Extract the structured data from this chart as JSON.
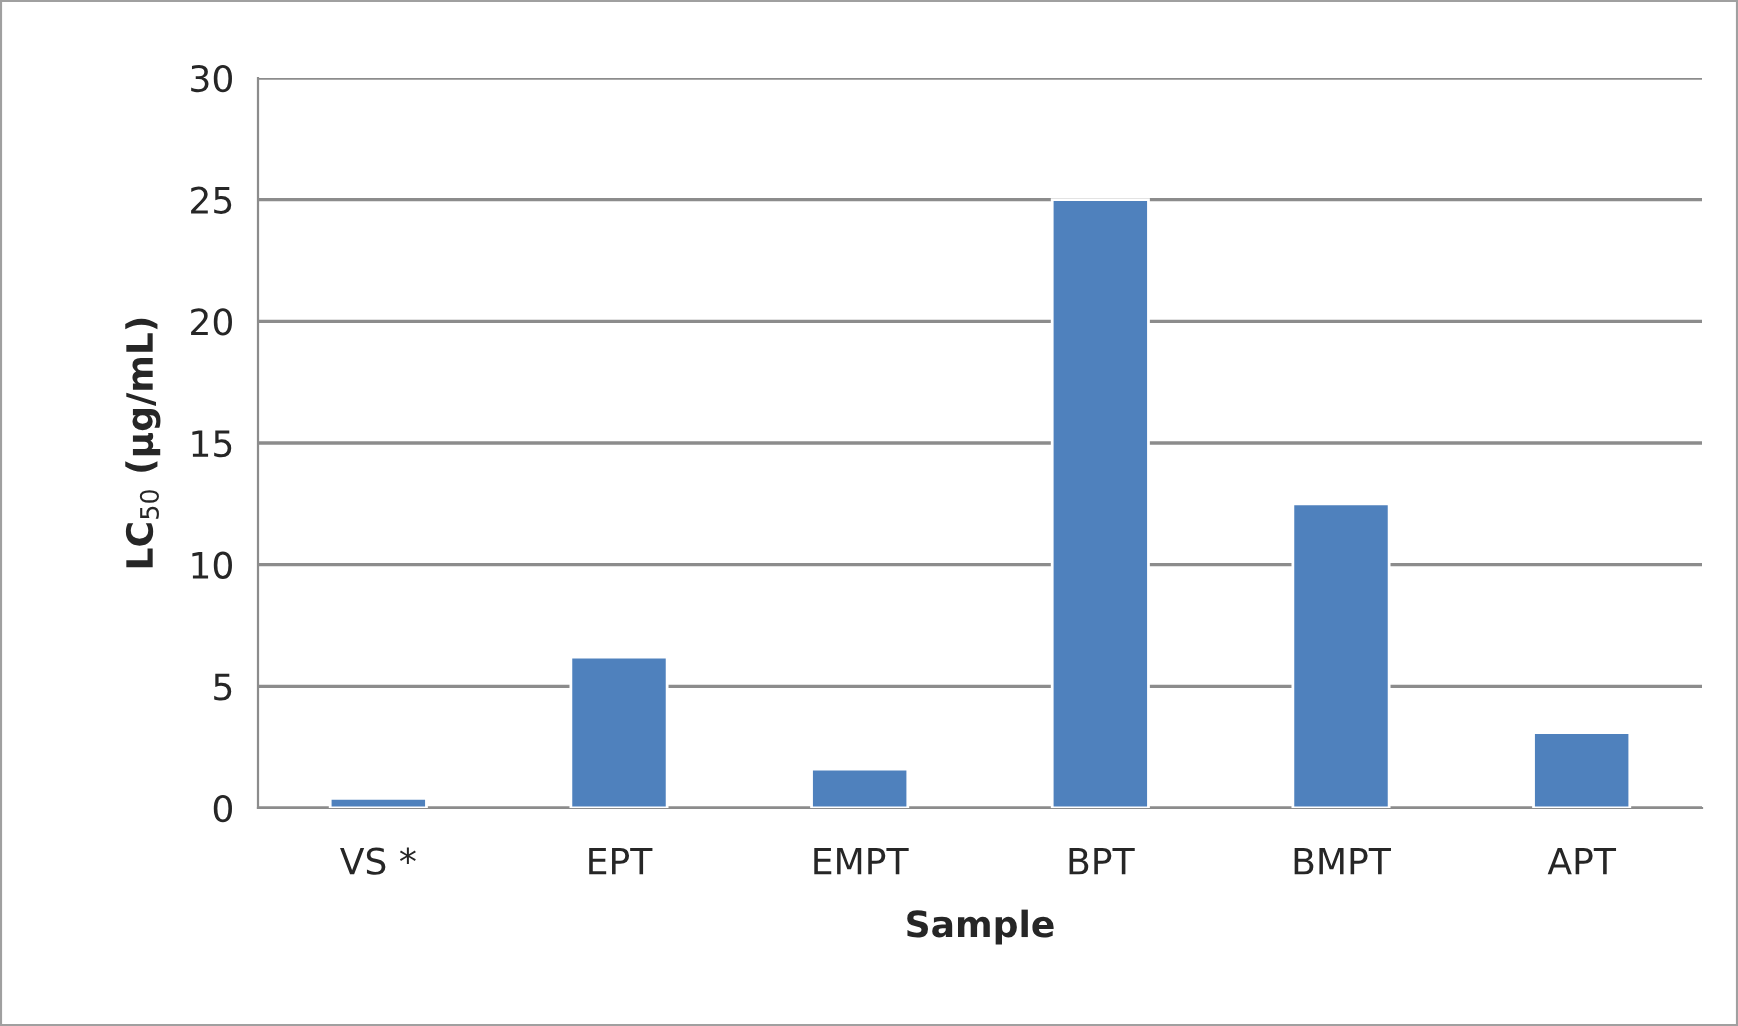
{
  "chart_data": {
    "type": "bar",
    "xlabel": "Sample",
    "ylabel": "LC$_{50}$ (µg/mL)",
    "categories": [
      "VS *",
      "EPT",
      "EMPT",
      "BPT",
      "BMPT",
      "APT"
    ],
    "values": [
      0.4,
      6.2,
      1.6,
      25,
      12.5,
      3.1
    ],
    "color": "#4f81bd",
    "ylim": [
      0,
      30
    ],
    "yticks": [
      0,
      5,
      10,
      15,
      20,
      25,
      30
    ],
    "grid": "y",
    "legend": false
  }
}
